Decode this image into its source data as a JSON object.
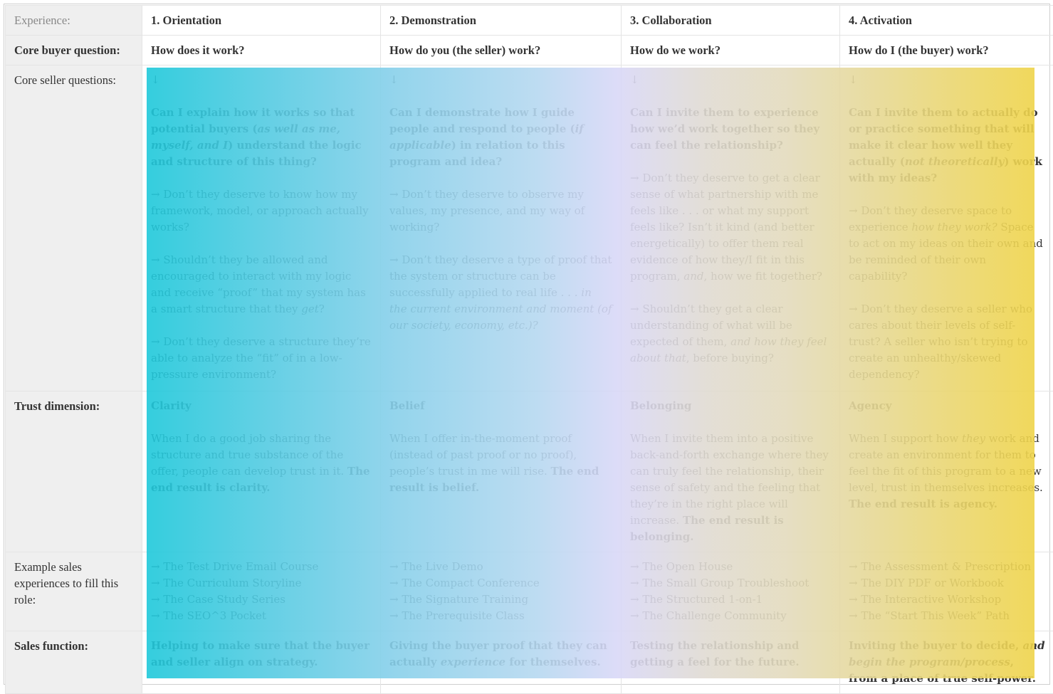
{
  "labels": {
    "experience": "Experience:",
    "buyer_question": "Core buyer question:",
    "seller_questions": "Core seller questions:",
    "trust_dimension": "Trust dimension:",
    "examples": "Example sales experiences to fill this role:",
    "sales_function": "Sales function:"
  },
  "gradient_colors": [
    "#1ec8da",
    "#88d0ea",
    "#d9d8f7",
    "#e3dbbd",
    "#efd44a"
  ],
  "columns": [
    {
      "experience": "1. Orientation",
      "buyer_question": "How does it work?",
      "down_arrow": "↓",
      "seller_questions": [
        [
          {
            "t": "Can I explain how it works so that potential buyers (",
            "b": 1
          },
          {
            "t": "as well as me, myself, and I",
            "b": 1,
            "i": 1
          },
          {
            "t": ") understand the logic and structure of this thing?",
            "b": 1
          }
        ],
        [
          {
            "t": "→ Don’t they deserve to know how my framework, model, or approach actually works?"
          }
        ],
        [
          {
            "t": "→ Shouldn’t they be allowed and encouraged to interact with my logic and receive “proof” that my system has a smart structure that they "
          },
          {
            "t": "get",
            "i": 1
          },
          {
            "t": "?"
          }
        ],
        [
          {
            "t": "→ Don’t they deserve a structure they’re able to analyze the “fit” of in a low-pressure environment?"
          }
        ]
      ],
      "trust_title": "Clarity",
      "trust_text": [
        {
          "t": "When I do a good job sharing the structure and true substance of the offer, people can develop trust in it. "
        },
        {
          "t": "The end result is clarity.",
          "b": 1
        }
      ],
      "examples": [
        "→ The Test Drive Email Course",
        "→ The Curriculum Storyline",
        "→ The Case Study Series",
        "→ The SEO^3 Pocket"
      ],
      "sales_function": [
        {
          "t": "Helping to make sure that the buyer and seller align on strategy.",
          "b": 1
        }
      ]
    },
    {
      "experience": "2. Demonstration",
      "buyer_question": "How do you (the seller) work?",
      "down_arrow": "↓",
      "seller_questions": [
        [
          {
            "t": "Can I demonstrate how I guide people and respond to people (",
            "b": 1
          },
          {
            "t": "if applicable",
            "b": 1,
            "i": 1
          },
          {
            "t": ") in relation to this program and idea?",
            "b": 1
          }
        ],
        [
          {
            "t": "→ Don’t they deserve to observe my values, my presence, and my way of working?"
          }
        ],
        [
          {
            "t": "→ Don’t they deserve a type of proof that the system or structure can be successfully applied to real life . . . "
          },
          {
            "t": "in the current environment and moment (of our society, economy, etc.)?",
            "i": 1
          }
        ]
      ],
      "trust_title": "Belief",
      "trust_text": [
        {
          "t": "When I offer in-the-moment proof (instead of past proof or no proof), people’s trust in me will rise. "
        },
        {
          "t": "The end result is belief.",
          "b": 1
        }
      ],
      "examples": [
        "→ The Live Demo",
        "→ The Compact Conference",
        "→ The Signature Training",
        "→ The Prerequisite Class"
      ],
      "sales_function": [
        {
          "t": "Giving the buyer proof that they can actually ",
          "b": 1
        },
        {
          "t": "experience",
          "b": 1,
          "i": 1
        },
        {
          "t": " for themselves.",
          "b": 1
        }
      ]
    },
    {
      "experience": "3. Collaboration",
      "buyer_question": "How do we work?",
      "down_arrow": "↓",
      "seller_questions": [
        [
          {
            "t": "Can I invite them to experience how we’d work together so they can feel the relationship?",
            "b": 1
          }
        ],
        [
          {
            "t": "→ Don’t they deserve to get a clear sense of what partnership with me feels like . . . or what my support feels like? Isn’t it kind (and better energetically) to offer them real evidence of  how they/I fit in this program, "
          },
          {
            "t": "and",
            "i": 1
          },
          {
            "t": ", how we fit together?"
          }
        ],
        [
          {
            "t": "→ Shouldn’t they get a clear understanding of what will be expected of them, "
          },
          {
            "t": "and how they feel about that",
            "i": 1
          },
          {
            "t": ", before buying?"
          }
        ]
      ],
      "trust_title": "Belonging",
      "trust_text": [
        {
          "t": "When I invite them into a positive back-and-forth exchange where they can truly feel the relationship, their sense of safety and the feeling that they’re in the right place will increase. "
        },
        {
          "t": "The end result is belonging.",
          "b": 1
        }
      ],
      "examples": [
        "→ The Open House",
        "→ The Small Group Troubleshoot",
        "→ The Structured 1-on-1",
        "→ The Challenge Community"
      ],
      "sales_function": [
        {
          "t": "Testing the relationship and getting a feel for the future.",
          "b": 1
        }
      ]
    },
    {
      "experience": "4. Activation",
      "buyer_question": "How do I (the buyer) work?",
      "down_arrow": "↓",
      "seller_questions": [
        [
          {
            "t": "Can I invite them to actually do or practice something that will make it clear how well they actually (",
            "b": 1
          },
          {
            "t": "not theoretically",
            "b": 1,
            "i": 1
          },
          {
            "t": ") work with my ideas?",
            "b": 1
          }
        ],
        [
          {
            "t": "→ Don’t they deserve space to experience "
          },
          {
            "t": "how they work?",
            "i": 1
          },
          {
            "t": " Space to act on my ideas on their own and be reminded of their own capability?"
          }
        ],
        [
          {
            "t": "→ Don’t they deserve a seller who cares about their levels of self-trust? A seller who isn’t trying to create an unhealthy/skewed dependency?"
          }
        ]
      ],
      "trust_title": "Agency",
      "trust_text": [
        {
          "t": "When I support how "
        },
        {
          "t": "they",
          "i": 1
        },
        {
          "t": " work and create an environment for them to feel the fit of this program to a new level, trust in themselves increases. "
        },
        {
          "t": "The end result is agency.",
          "b": 1
        }
      ],
      "examples": [
        "→ The Assessment & Prescription",
        "→ The DIY PDF or Workbook",
        "→ The Interactive Workshop",
        "→ The “Start This Week” Path"
      ],
      "sales_function": [
        {
          "t": "Inviting the buyer to decide, ",
          "b": 1
        },
        {
          "t": "and begin the program/process",
          "b": 1,
          "i": 1
        },
        {
          "t": ", from a place of true self-power.",
          "b": 1
        }
      ]
    }
  ]
}
